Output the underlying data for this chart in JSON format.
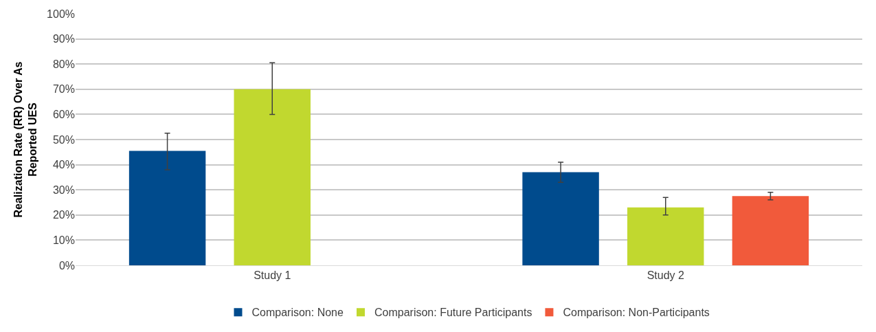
{
  "chart_data": {
    "type": "bar",
    "ylabel": "Realization Rate (RR) Over As Reported UES",
    "categories": [
      "Study 1",
      "Study 2"
    ],
    "series": [
      {
        "name": "Comparison: None",
        "color": "#004b8d",
        "values": [
          45.5,
          37
        ],
        "errors": [
          [
            38,
            52.5
          ],
          [
            33,
            41
          ]
        ]
      },
      {
        "name": "Comparison: Future Participants",
        "color": "#c1d82f",
        "values": [
          70,
          23
        ],
        "errors": [
          [
            60,
            80.5
          ],
          [
            20,
            27
          ]
        ]
      },
      {
        "name": "Comparison: Non-Participants",
        "color": "#f15a3b",
        "values": [
          null,
          27.5
        ],
        "errors": [
          null,
          [
            26,
            29
          ]
        ]
      }
    ],
    "ylim": [
      0,
      100
    ],
    "yticks": [
      {
        "value": 0,
        "label": "0%"
      },
      {
        "value": 10,
        "label": "10%"
      },
      {
        "value": 20,
        "label": "20%"
      },
      {
        "value": 30,
        "label": "30%"
      },
      {
        "value": 40,
        "label": "40%"
      },
      {
        "value": 50,
        "label": "50%"
      },
      {
        "value": 60,
        "label": "60%"
      },
      {
        "value": 70,
        "label": "70%"
      },
      {
        "value": 80,
        "label": "80%"
      },
      {
        "value": 90,
        "label": "90%"
      },
      {
        "value": 100,
        "label": "100%"
      }
    ],
    "grid": "y",
    "legend": "bottom"
  }
}
